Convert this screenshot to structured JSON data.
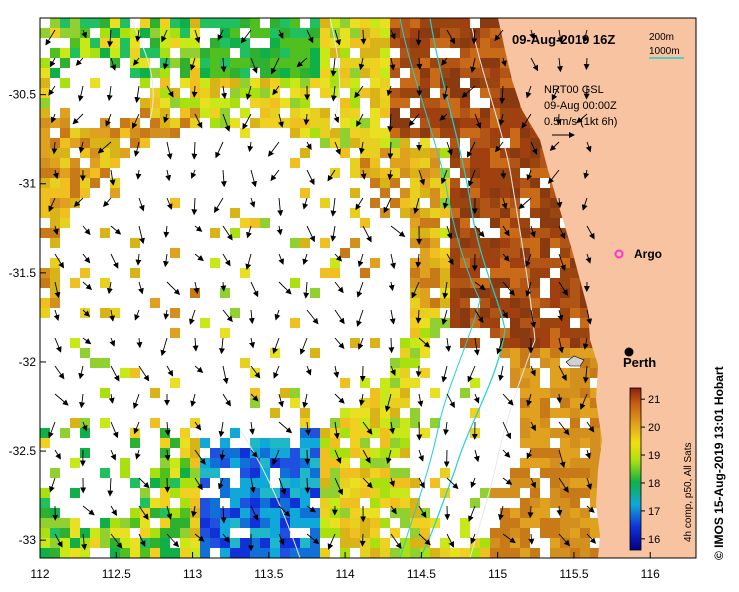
{
  "map": {
    "title": "09-Aug-2019 16Z",
    "bathy_legend": [
      "200m",
      "1000m"
    ],
    "current_source": "NRT00 GSL",
    "current_date": "09-Aug 00:00Z",
    "current_scale": "0.5m/s (1kt 6h)",
    "places": [
      {
        "name": "Argo"
      },
      {
        "name": "Perth"
      }
    ],
    "x_ticks": [
      "112",
      "112.5",
      "113",
      "113.5",
      "114",
      "114.5",
      "115",
      "115.5",
      "116"
    ],
    "y_ticks": [
      "-30.5",
      "-31",
      "-31.5",
      "-32",
      "-32.5",
      "-33"
    ],
    "x_range": [
      112,
      116.3
    ],
    "y_range": [
      -33.1,
      -30.07
    ],
    "colorbar": {
      "label": "4h comp, p50, All Sats",
      "ticks": [
        "16",
        "17",
        "18",
        "19",
        "20",
        "21"
      ],
      "range": [
        15.6,
        21.4
      ]
    },
    "credit": "© IMOS 15-Aug-2019 13:01 Hobart",
    "colors": {
      "land": "#f7c3a1",
      "cloud": "#ffffff",
      "contour_200m": "#e8e8e8",
      "contour_1000m": "#20d0d0",
      "argo": "#ff33cc"
    }
  }
}
